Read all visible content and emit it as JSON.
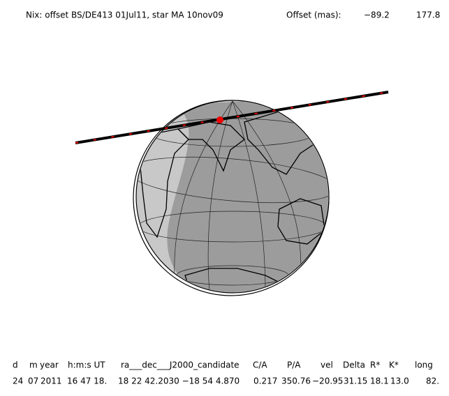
{
  "header": {
    "title": "Nix: offset BS/DE413 01Jul11, star MA 10nov09",
    "offset_label": "Offset (mas):",
    "offset_values": [
      "−89.2",
      "177.8"
    ]
  },
  "table": {
    "columns": [
      "d",
      "m",
      "year",
      "h:m:s UT",
      "ra___dec___J2000_candidate",
      "C/A",
      "P/A",
      "vel",
      "Delta",
      "R*",
      "K*",
      "long"
    ],
    "rows": [
      [
        "24",
        "07",
        "2011",
        "16 47 18.",
        "18 22 42.2030 −18 54  4.870",
        "0.217",
        "350.76",
        "−20.95",
        "31.15",
        "18.1",
        "13.0",
        "82."
      ]
    ]
  }
}
